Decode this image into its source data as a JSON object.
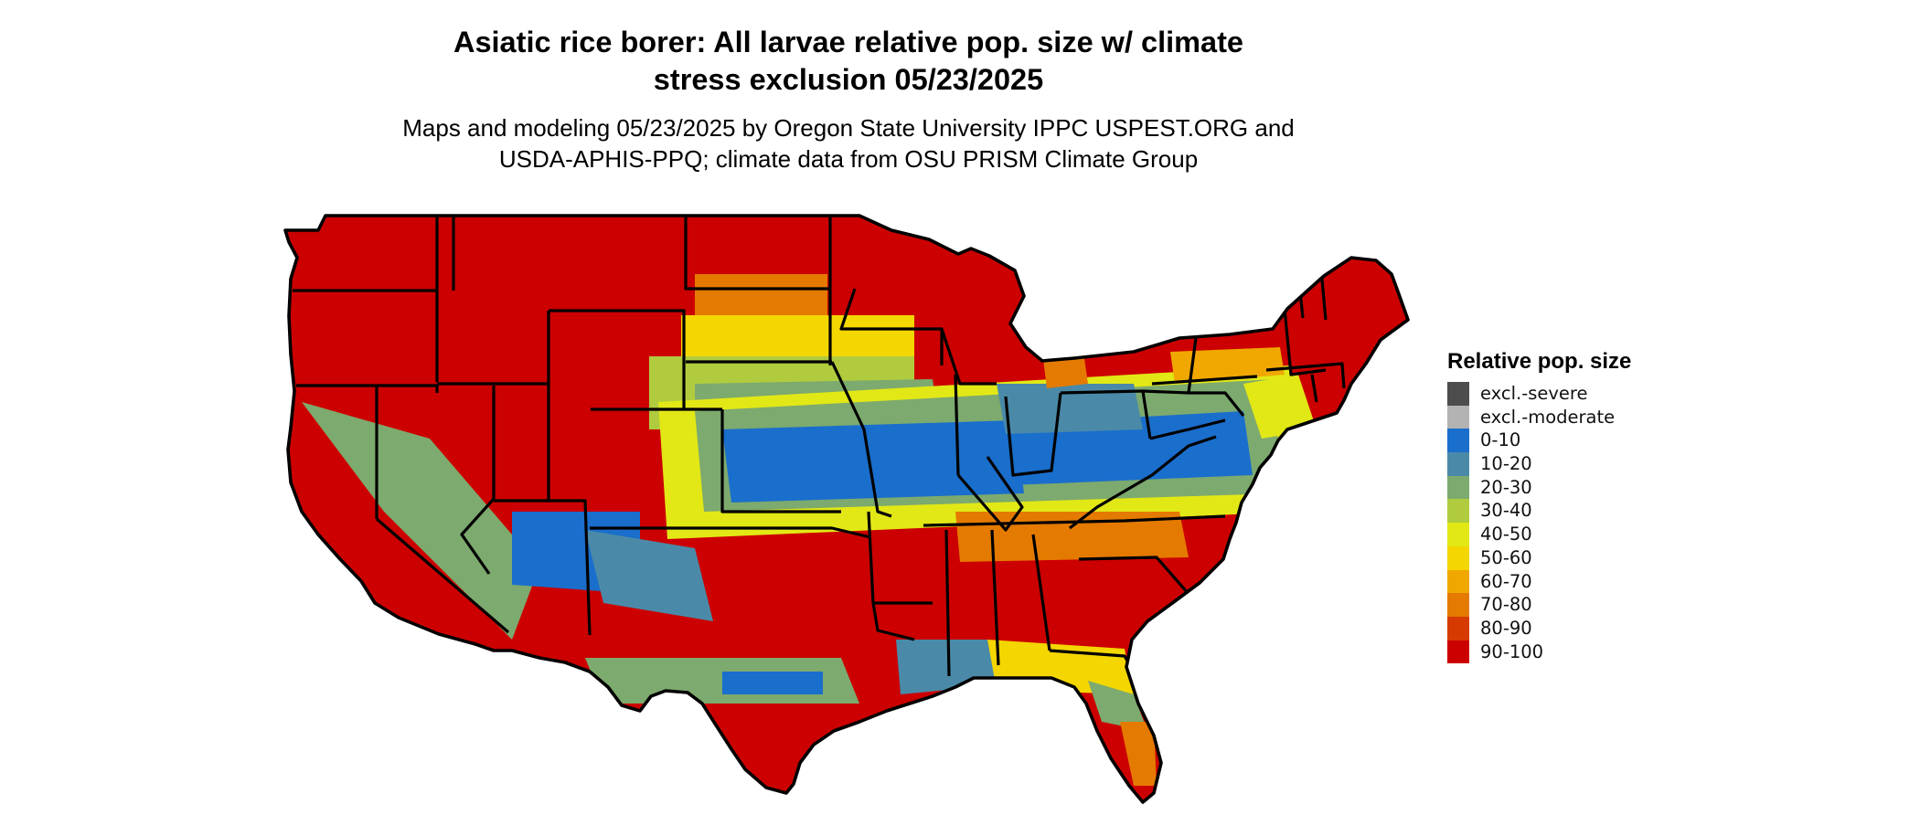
{
  "title_line1": "Asiatic rice borer: All larvae relative pop. size w/ climate",
  "title_line2": "stress exclusion 05/23/2025",
  "subtitle_line1": "Maps and modeling 05/23/2025 by Oregon State University IPPC USPEST.ORG and",
  "subtitle_line2": "USDA-APHIS-PPQ; climate data from OSU PRISM Climate Group",
  "legend": {
    "title": "Relative pop. size",
    "items": [
      {
        "label": "excl.-severe",
        "color": "#4d4d4d"
      },
      {
        "label": "excl.-moderate",
        "color": "#b3b3b3"
      },
      {
        "label": "0-10",
        "color": "#1a6ecc"
      },
      {
        "label": "10-20",
        "color": "#4a8aa8"
      },
      {
        "label": "20-30",
        "color": "#7daa6e"
      },
      {
        "label": "30-40",
        "color": "#b0cc3e"
      },
      {
        "label": "40-50",
        "color": "#e2e816"
      },
      {
        "label": "50-60",
        "color": "#f4d600"
      },
      {
        "label": "60-70",
        "color": "#f0a800"
      },
      {
        "label": "70-80",
        "color": "#e57a00"
      },
      {
        "label": "80-90",
        "color": "#d63a00"
      },
      {
        "label": "90-100",
        "color": "#cc0000"
      }
    ]
  },
  "map": {
    "region": "contiguous-united-states",
    "state_border_color": "#000000",
    "dominant_class": "90-100"
  }
}
